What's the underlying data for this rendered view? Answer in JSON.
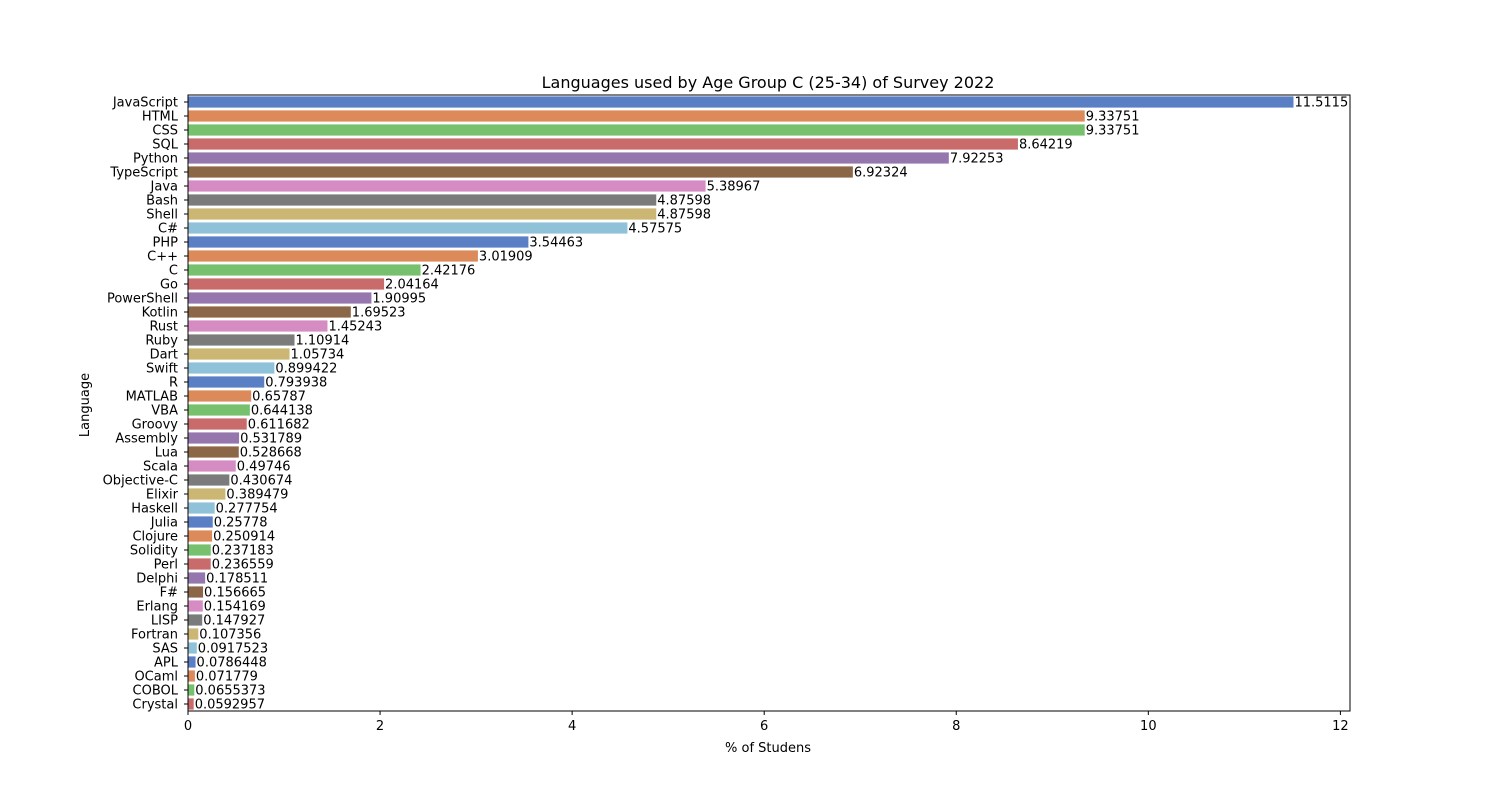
{
  "chart_data": {
    "type": "bar",
    "orientation": "horizontal",
    "title": "Languages used by Age Group C (25-34) of Survey 2022",
    "xlabel": "% of Studens",
    "ylabel": "Language",
    "xlim": [
      0,
      12.1
    ],
    "xticks": [
      0,
      2,
      4,
      6,
      8,
      10,
      12
    ],
    "grid": false,
    "palette": [
      "#5a7fc4",
      "#dd8a5b",
      "#77c16e",
      "#c96b6b",
      "#9577ae",
      "#8b6748",
      "#d58cc2",
      "#7b7b7b",
      "#ccb674",
      "#8fc2d9"
    ],
    "categories": [
      "JavaScript",
      "HTML",
      "CSS",
      "SQL",
      "Python",
      "TypeScript",
      "Java",
      "Bash",
      "Shell",
      "C#",
      "PHP",
      "C++",
      "C",
      "Go",
      "PowerShell",
      "Kotlin",
      "Rust",
      "Ruby",
      "Dart",
      "Swift",
      "R",
      "MATLAB",
      "VBA",
      "Groovy",
      "Assembly",
      "Lua",
      "Scala",
      "Objective-C",
      "Elixir",
      "Haskell",
      "Julia",
      "Clojure",
      "Solidity",
      "Perl",
      "Delphi",
      "F#",
      "Erlang",
      "LISP",
      "Fortran",
      "SAS",
      "APL",
      "OCaml",
      "COBOL",
      "Crystal"
    ],
    "values": [
      11.5115,
      9.33751,
      9.33751,
      8.64219,
      7.92253,
      6.92324,
      5.38967,
      4.87598,
      4.87598,
      4.57575,
      3.54463,
      3.01909,
      2.42176,
      2.04164,
      1.90995,
      1.69523,
      1.45243,
      1.10914,
      1.05734,
      0.899422,
      0.793938,
      0.65787,
      0.644138,
      0.611682,
      0.531789,
      0.528668,
      0.49746,
      0.430674,
      0.389479,
      0.277754,
      0.25778,
      0.250914,
      0.237183,
      0.236559,
      0.178511,
      0.156665,
      0.154169,
      0.147927,
      0.107356,
      0.0917523,
      0.0786448,
      0.071779,
      0.0655373,
      0.0592957
    ],
    "value_labels": [
      "11.5115",
      "9.33751",
      "9.33751",
      "8.64219",
      "7.92253",
      "6.92324",
      "5.38967",
      "4.87598",
      "4.87598",
      "4.57575",
      "3.54463",
      "3.01909",
      "2.42176",
      "2.04164",
      "1.90995",
      "1.69523",
      "1.45243",
      "1.10914",
      "1.05734",
      "0.899422",
      "0.793938",
      "0.65787",
      "0.644138",
      "0.611682",
      "0.531789",
      "0.528668",
      "0.49746",
      "0.430674",
      "0.389479",
      "0.277754",
      "0.25778",
      "0.250914",
      "0.237183",
      "0.236559",
      "0.178511",
      "0.156665",
      "0.154169",
      "0.147927",
      "0.107356",
      "0.0917523",
      "0.0786448",
      "0.071779",
      "0.0655373",
      "0.0592957"
    ]
  }
}
